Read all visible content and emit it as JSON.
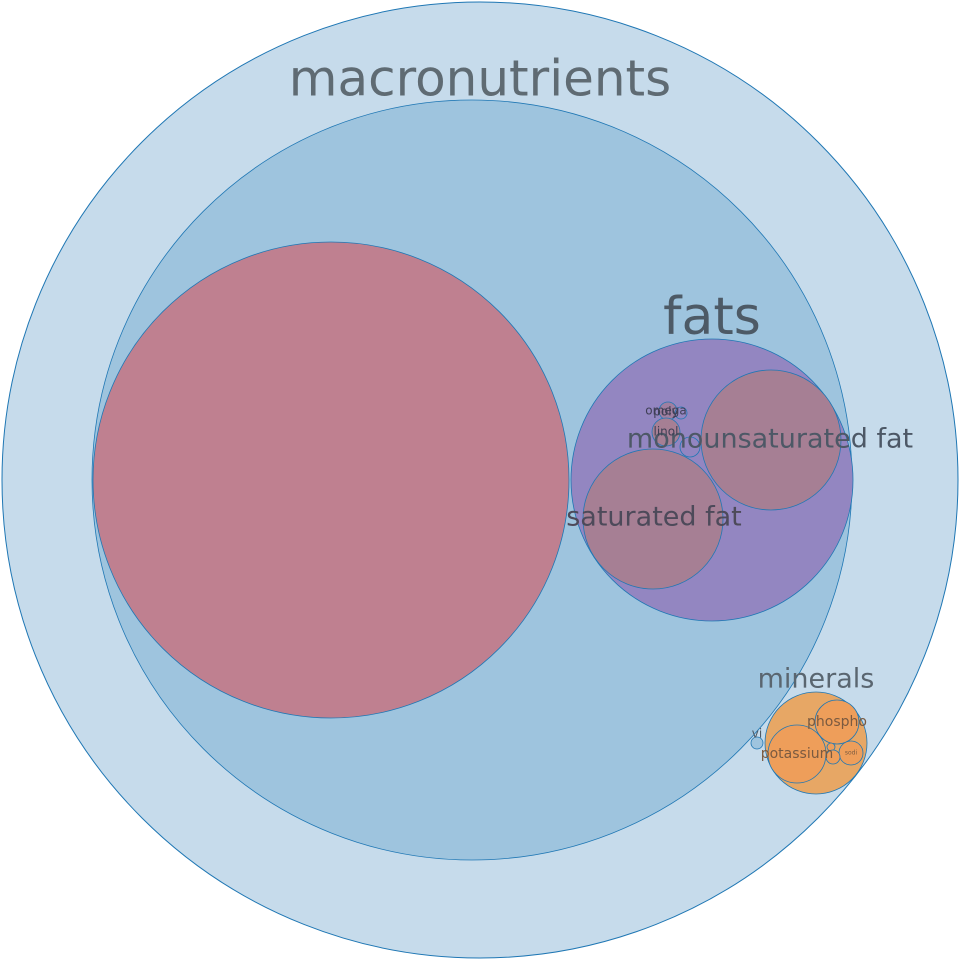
{
  "chart_data": {
    "type": "circle-packing",
    "stroke_color": "#1f77b4",
    "nodes": [
      {
        "key": "macronutrients",
        "label": "macronutrients",
        "depth": 0,
        "color": "#c6dbeb",
        "label_color": "#5f6b73",
        "label_pos": "top"
      },
      {
        "key": "inner",
        "label": "",
        "depth": 1,
        "color": "#9ec4de"
      },
      {
        "key": "big",
        "label": "",
        "depth": 2,
        "color": "#bf8090"
      },
      {
        "key": "fats",
        "label": "fats",
        "depth": 2,
        "color": "#9386c1",
        "label_color": "#4d5a66",
        "label_pos": "top"
      },
      {
        "key": "monounsaturated",
        "label": "monounsaturated fat",
        "depth": 3,
        "color": "#a67f94",
        "label_color": "#4d5866"
      },
      {
        "key": "saturated",
        "label": "saturated fat",
        "depth": 3,
        "color": "#a67f94",
        "label_color": "#4d4a5a"
      },
      {
        "key": "poly",
        "label": "poly",
        "depth": 3,
        "color": "#a07fa0",
        "label_color": "#3f3f55"
      },
      {
        "key": "omega",
        "label": "omega",
        "depth": 3,
        "color": "#9386c1",
        "label_color": "#3f3f55"
      },
      {
        "key": "linol",
        "label": "linol",
        "depth": 4,
        "color": "#a67f94",
        "label_color": "#3f3f55"
      },
      {
        "key": "omega_small",
        "label": "",
        "depth": 3,
        "color": "#9386c1"
      },
      {
        "key": "minerals",
        "label": "minerals",
        "depth": 1,
        "color": "#e7a765",
        "label_color": "#5a6670",
        "label_pos": "top"
      },
      {
        "key": "potassium",
        "label": "potassium",
        "depth": 2,
        "color": "#ee9e5a",
        "label_color": "#7a5a40"
      },
      {
        "key": "phospho",
        "label": "phospho",
        "depth": 2,
        "color": "#ee9e5a",
        "label_color": "#7a5a40"
      },
      {
        "key": "sodium",
        "label": "sodi",
        "depth": 2,
        "color": "#ee9e5a",
        "label_color": "#7a5a40"
      },
      {
        "key": "mg",
        "label": "",
        "depth": 2,
        "color": "#ee9e5a"
      },
      {
        "key": "mg2",
        "label": "",
        "depth": 2,
        "color": "#ee9e5a"
      },
      {
        "key": "vit",
        "label": "vi",
        "depth": 1,
        "color": "#9ec4de",
        "label_color": "#4d5a66"
      }
    ]
  }
}
